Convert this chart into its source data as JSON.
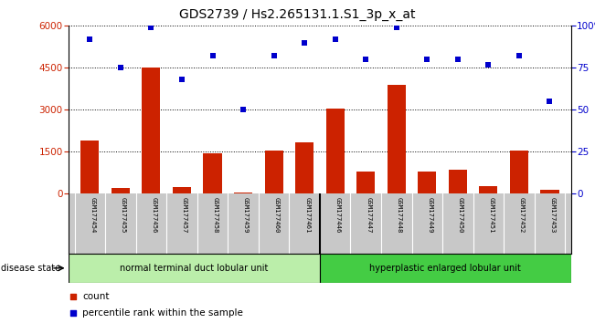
{
  "title": "GDS2739 / Hs2.265131.1.S1_3p_x_at",
  "categories": [
    "GSM177454",
    "GSM177455",
    "GSM177456",
    "GSM177457",
    "GSM177458",
    "GSM177459",
    "GSM177460",
    "GSM177461",
    "GSM177446",
    "GSM177447",
    "GSM177448",
    "GSM177449",
    "GSM177450",
    "GSM177451",
    "GSM177452",
    "GSM177453"
  ],
  "counts": [
    1900,
    200,
    4500,
    250,
    1450,
    50,
    1550,
    1850,
    3050,
    800,
    3900,
    800,
    850,
    280,
    1550,
    130
  ],
  "percentiles": [
    92,
    75,
    99,
    68,
    82,
    50,
    82,
    90,
    92,
    80,
    99,
    80,
    80,
    77,
    82,
    55
  ],
  "ylim_left": [
    0,
    6000
  ],
  "ylim_right": [
    0,
    100
  ],
  "yticks_left": [
    0,
    1500,
    3000,
    4500,
    6000
  ],
  "yticks_right": [
    0,
    25,
    50,
    75,
    100
  ],
  "bar_color": "#cc2200",
  "dot_color": "#0000cc",
  "group1_label": "normal terminal duct lobular unit",
  "group2_label": "hyperplastic enlarged lobular unit",
  "group1_count": 8,
  "group2_count": 8,
  "group1_color": "#bbeeaa",
  "group2_color": "#44cc44",
  "disease_state_label": "disease state",
  "legend_count_label": "count",
  "legend_pct_label": "percentile rank within the sample",
  "bg_color": "#ffffff",
  "tick_area_color": "#c8c8c8",
  "title_fontsize": 10,
  "axis_fontsize": 7.5,
  "label_fontsize": 7.5
}
